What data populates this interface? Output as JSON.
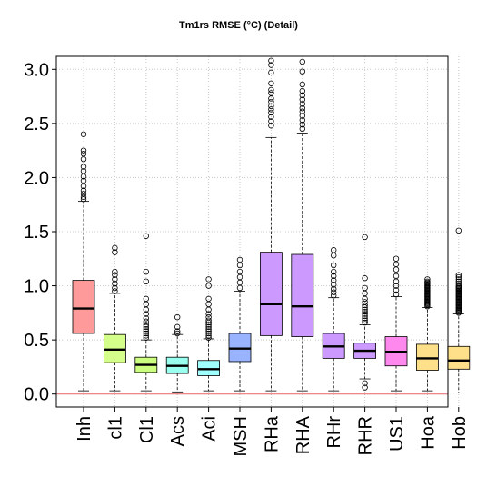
{
  "chart_data": {
    "type": "box",
    "title": "Tm1rs RMSE (°C) (Detail)",
    "xlabel": "",
    "ylabel": "",
    "ylim": [
      -0.12,
      3.12
    ],
    "yticks": [
      0.0,
      0.5,
      1.0,
      1.5,
      2.0,
      2.5,
      3.0
    ],
    "grid": true,
    "reference_line": {
      "y": 0.0,
      "color": "#e87a7a"
    },
    "categories": [
      "Inh",
      "cl1",
      "Cl1",
      "Acs",
      "Aci",
      "MSH",
      "RHa",
      "RHA",
      "RHr",
      "RHR",
      "US1",
      "Hoa",
      "Hob"
    ],
    "boxes": [
      {
        "name": "Inh",
        "color": "#ff9a9a",
        "min": 0.03,
        "q1": 0.56,
        "median": 0.79,
        "q3": 1.05,
        "max": 1.78,
        "outliers": [
          1.8,
          1.82,
          1.85,
          1.88,
          1.92,
          1.97,
          2.01,
          2.06,
          2.1,
          2.17,
          2.22,
          2.25,
          2.4
        ]
      },
      {
        "name": "cl1",
        "color": "#d4ff8a",
        "min": 0.03,
        "q1": 0.29,
        "median": 0.41,
        "q3": 0.55,
        "max": 0.93,
        "outliers": [
          0.95,
          0.98,
          1.02,
          1.06,
          1.1,
          1.13,
          1.31,
          1.35
        ]
      },
      {
        "name": "Cl1",
        "color": "#ccff80",
        "min": 0.03,
        "q1": 0.2,
        "median": 0.27,
        "q3": 0.34,
        "max": 0.5,
        "outliers": [
          0.52,
          0.54,
          0.56,
          0.58,
          0.6,
          0.62,
          0.64,
          0.67,
          0.7,
          0.74,
          0.78,
          0.83,
          0.88,
          1.04,
          1.13,
          1.46
        ]
      },
      {
        "name": "Acs",
        "color": "#99ffee",
        "min": 0.02,
        "q1": 0.19,
        "median": 0.26,
        "q3": 0.34,
        "max": 0.55,
        "outliers": [
          0.56,
          0.58,
          0.62,
          0.71
        ]
      },
      {
        "name": "Aci",
        "color": "#a0ffff",
        "min": 0.03,
        "q1": 0.17,
        "median": 0.23,
        "q3": 0.31,
        "max": 0.51,
        "outliers": [
          0.52,
          0.54,
          0.56,
          0.58,
          0.6,
          0.62,
          0.64,
          0.66,
          0.68,
          0.71,
          0.74,
          0.78,
          0.83,
          0.88,
          1.0,
          1.06
        ]
      },
      {
        "name": "MSH",
        "color": "#99b3ff",
        "min": 0.03,
        "q1": 0.3,
        "median": 0.42,
        "q3": 0.56,
        "max": 0.95,
        "outliers": [
          0.98,
          1.03,
          1.08,
          1.13,
          1.19,
          1.24
        ]
      },
      {
        "name": "RHa",
        "color": "#cc99ff",
        "min": 0.03,
        "q1": 0.54,
        "median": 0.83,
        "q3": 1.31,
        "max": 2.37,
        "outliers": [
          2.48,
          2.52,
          2.56,
          2.6,
          2.63,
          2.66,
          2.7,
          2.73,
          2.78,
          2.81,
          2.87,
          2.97,
          3.04,
          3.08
        ]
      },
      {
        "name": "RHA",
        "color": "#cc99ff",
        "min": 0.03,
        "q1": 0.53,
        "median": 0.81,
        "q3": 1.29,
        "max": 2.41,
        "outliers": [
          2.45,
          2.49,
          2.53,
          2.57,
          2.61,
          2.64,
          2.68,
          2.72,
          2.76,
          2.8,
          2.86,
          2.98,
          3.07
        ]
      },
      {
        "name": "RHr",
        "color": "#cc99ff",
        "min": 0.03,
        "q1": 0.33,
        "median": 0.44,
        "q3": 0.56,
        "max": 0.89,
        "outliers": [
          0.91,
          0.94,
          0.97,
          1.01,
          1.05,
          1.09,
          1.13,
          1.19,
          1.28,
          1.33
        ]
      },
      {
        "name": "RHR",
        "color": "#cc99ff",
        "min": 0.14,
        "q1": 0.33,
        "median": 0.4,
        "q3": 0.47,
        "max": 0.64,
        "outliers": [
          0.06,
          0.1,
          0.66,
          0.68,
          0.7,
          0.72,
          0.74,
          0.76,
          0.78,
          0.8,
          0.82,
          0.85,
          0.88,
          0.93,
          0.98,
          1.07,
          1.45
        ]
      },
      {
        "name": "US1",
        "color": "#ff88ee",
        "min": 0.03,
        "q1": 0.26,
        "median": 0.39,
        "q3": 0.53,
        "max": 0.9,
        "outliers": [
          0.92,
          0.96,
          1.0,
          1.04,
          1.09,
          1.15,
          1.2,
          1.25
        ]
      },
      {
        "name": "Hoa",
        "color": "#ffe08a",
        "min": 0.03,
        "q1": 0.22,
        "median": 0.33,
        "q3": 0.46,
        "max": 0.8,
        "outliers": [
          0.81,
          0.82,
          0.83,
          0.84,
          0.85,
          0.86,
          0.87,
          0.88,
          0.89,
          0.9,
          0.91,
          0.92,
          0.93,
          0.94,
          0.95,
          0.96,
          0.97,
          0.98,
          0.99,
          1.0,
          1.01,
          1.02,
          1.03,
          1.04,
          1.06
        ]
      },
      {
        "name": "Hob",
        "color": "#ffe08a",
        "min": 0.01,
        "q1": 0.23,
        "median": 0.31,
        "q3": 0.44,
        "max": 0.74,
        "outliers": [
          0.75,
          0.76,
          0.77,
          0.78,
          0.79,
          0.8,
          0.81,
          0.82,
          0.83,
          0.84,
          0.85,
          0.86,
          0.87,
          0.88,
          0.89,
          0.9,
          0.91,
          0.92,
          0.93,
          0.94,
          0.95,
          0.96,
          0.97,
          0.98,
          0.99,
          1.0,
          1.02,
          1.04,
          1.06,
          1.08,
          1.1,
          1.51
        ]
      }
    ]
  }
}
